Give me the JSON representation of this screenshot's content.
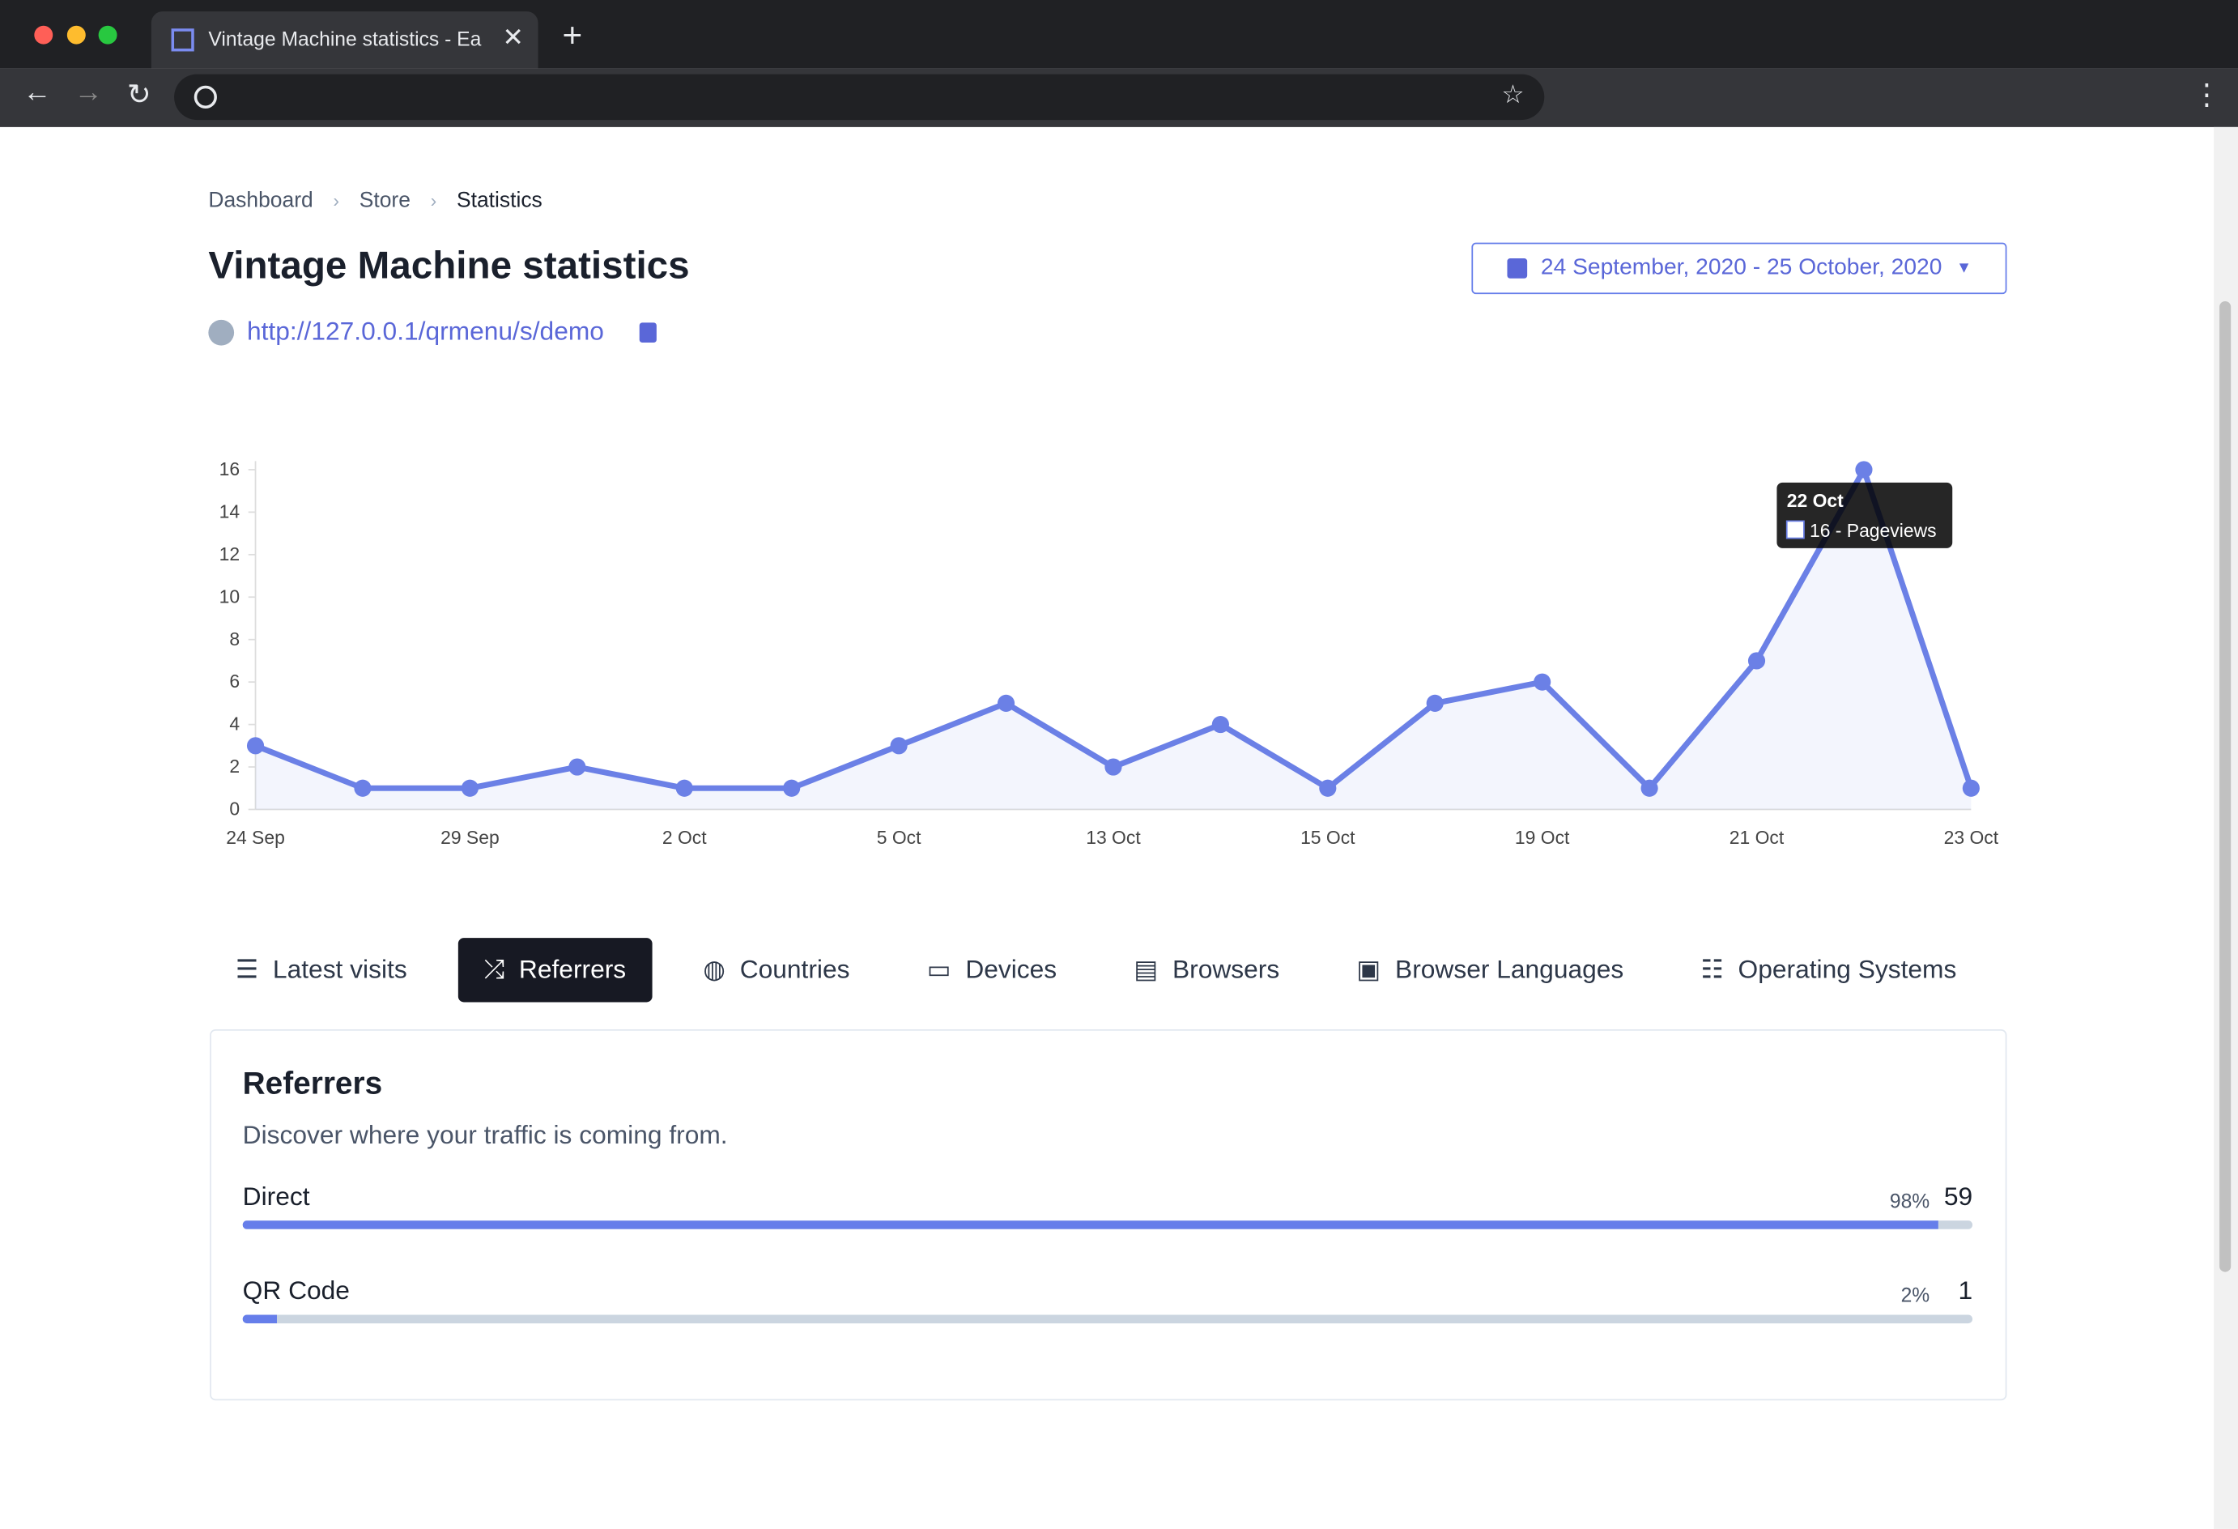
{
  "browser": {
    "tab_title": "Vintage Machine statistics - Ea"
  },
  "breadcrumbs": [
    "Dashboard",
    "Store",
    "Statistics"
  ],
  "header": {
    "title": "Vintage Machine statistics",
    "url": "http://127.0.0.1/qrmenu/s/demo",
    "date_range": "24 September, 2020 - 25 October, 2020"
  },
  "chart_data": {
    "type": "line",
    "categories": [
      "24 Sep",
      null,
      "29 Sep",
      null,
      "2 Oct",
      null,
      "5 Oct",
      null,
      "13 Oct",
      null,
      "15 Oct",
      null,
      "19 Oct",
      null,
      "21 Oct",
      null,
      "23 Oct"
    ],
    "series": [
      {
        "color": "#6b80e6",
        "values": [
          3,
          1,
          1,
          2,
          1,
          1,
          3,
          5,
          2,
          4,
          1,
          5,
          6,
          1,
          7,
          16,
          1
        ]
      }
    ],
    "ylim": [
      0,
      16
    ],
    "yticks": [
      0,
      2,
      4,
      6,
      8,
      10,
      12,
      14,
      16
    ],
    "grid": false,
    "tooltip": {
      "index": 15,
      "title": "22 Oct",
      "label": "16 - Pageviews"
    }
  },
  "tabs": {
    "items": [
      "Latest visits",
      "Referrers",
      "Countries",
      "Devices",
      "Browsers",
      "Browser Languages",
      "Operating Systems"
    ],
    "active": 1
  },
  "panel": {
    "title": "Referrers",
    "description": "Discover where your traffic is coming from.",
    "rows": [
      {
        "name": "Direct",
        "percent": {
          "value": 98,
          "label": "98%"
        },
        "count": 59
      },
      {
        "name": "QR Code",
        "percent": {
          "value": 2,
          "label": "2%"
        },
        "count": 1
      }
    ]
  }
}
